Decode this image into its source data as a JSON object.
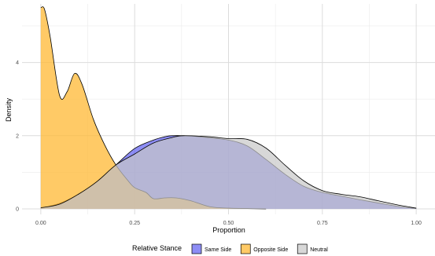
{
  "chart_data": {
    "type": "area",
    "xlabel": "Proportion",
    "ylabel": "Density",
    "xlim": [
      -0.05,
      1.05
    ],
    "ylim": [
      -0.15,
      5.6
    ],
    "x_ticks": [
      0.0,
      0.25,
      0.5,
      0.75,
      1.0
    ],
    "x_tick_labels": [
      "0.00",
      "0.25",
      "0.50",
      "0.75",
      "1.00"
    ],
    "y_ticks": [
      0,
      2,
      4
    ],
    "y_tick_labels": [
      "0",
      "2",
      "4"
    ],
    "grid": true,
    "legend": {
      "title": "Relative Stance",
      "position": "bottom",
      "entries": [
        "Same Side",
        "Opposite Side",
        "Neutral"
      ]
    },
    "series": [
      {
        "name": "Same Side",
        "color": "#5050f0",
        "opacity": 0.65,
        "x": [
          0.0,
          0.05,
          0.1,
          0.15,
          0.2,
          0.25,
          0.3,
          0.33,
          0.35,
          0.4,
          0.45,
          0.5,
          0.55,
          0.6,
          0.65,
          0.7,
          0.75,
          0.8,
          0.85,
          0.9,
          0.95,
          1.0
        ],
        "y": [
          0.02,
          0.15,
          0.4,
          0.75,
          1.2,
          1.65,
          1.88,
          1.97,
          2.0,
          1.99,
          1.94,
          1.88,
          1.72,
          1.35,
          0.95,
          0.62,
          0.45,
          0.35,
          0.25,
          0.16,
          0.07,
          0.01
        ]
      },
      {
        "name": "Opposite Side",
        "color": "#ffb833",
        "opacity": 0.75,
        "x": [
          0.0,
          0.01,
          0.025,
          0.05,
          0.07,
          0.09,
          0.11,
          0.14,
          0.17,
          0.2,
          0.23,
          0.25,
          0.28,
          0.3,
          0.33,
          0.36,
          0.4,
          0.45,
          0.5,
          0.55,
          0.6
        ],
        "y": [
          5.5,
          5.45,
          4.7,
          3.1,
          3.2,
          3.7,
          3.4,
          2.45,
          1.75,
          1.2,
          0.8,
          0.58,
          0.45,
          0.28,
          0.3,
          0.3,
          0.22,
          0.06,
          0.02,
          0.01,
          0.0
        ]
      },
      {
        "name": "Neutral",
        "color": "#c8c8c8",
        "opacity": 0.7,
        "x": [
          0.0,
          0.05,
          0.1,
          0.15,
          0.2,
          0.25,
          0.3,
          0.35,
          0.38,
          0.45,
          0.5,
          0.55,
          0.6,
          0.65,
          0.7,
          0.75,
          0.8,
          0.85,
          0.9,
          0.95,
          1.0
        ],
        "y": [
          0.03,
          0.13,
          0.4,
          0.75,
          1.2,
          1.5,
          1.8,
          1.95,
          2.0,
          1.97,
          1.92,
          1.9,
          1.66,
          1.2,
          0.77,
          0.5,
          0.4,
          0.33,
          0.22,
          0.11,
          0.02
        ]
      }
    ]
  }
}
